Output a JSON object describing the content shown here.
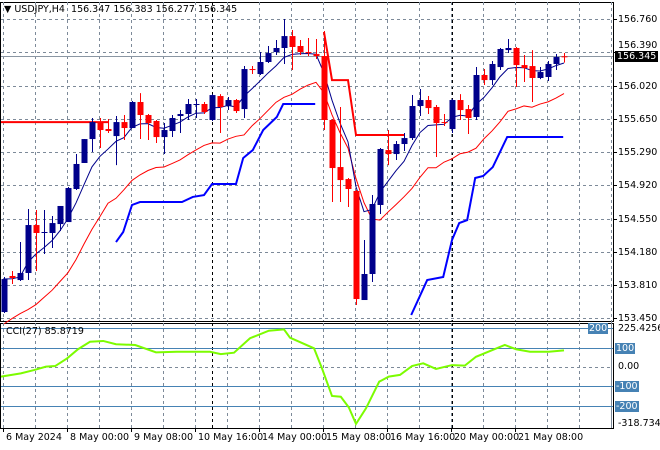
{
  "header": {
    "symbol": "USDJPY,H4",
    "ohlc": "156.347 156.383 156.277 156.345"
  },
  "price_axis": {
    "labels": [
      "156.760",
      "156.390",
      "156.020",
      "155.650",
      "155.290",
      "154.920",
      "154.550",
      "154.180",
      "153.810",
      "153.450"
    ],
    "levels": [
      156.76,
      156.39,
      156.02,
      155.65,
      155.29,
      154.92,
      154.55,
      154.18,
      153.81,
      153.45
    ],
    "current": "156.345",
    "current_value": 156.345
  },
  "cci": {
    "title": "CCI(27) 85.8719",
    "max_label": "225.4256",
    "min_label": "-318.7341",
    "zero_label": "0.00",
    "levels": [
      {
        "v": 200,
        "label": "200"
      },
      {
        "v": 100,
        "label": "100"
      },
      {
        "v": -100,
        "label": "-100"
      },
      {
        "v": -200,
        "label": "-200"
      }
    ],
    "points": [
      [
        -0.5,
        -50
      ],
      [
        2.1,
        -33
      ],
      [
        3.75,
        -16
      ],
      [
        5.25,
        2
      ],
      [
        6.4,
        5
      ],
      [
        7.9,
        45
      ],
      [
        9.25,
        92
      ],
      [
        10.75,
        131
      ],
      [
        12.4,
        135
      ],
      [
        14,
        118
      ],
      [
        16.4,
        114
      ],
      [
        19,
        76
      ],
      [
        21.6,
        79
      ],
      [
        25.75,
        79
      ],
      [
        27.1,
        67
      ],
      [
        28.75,
        74
      ],
      [
        30.75,
        149
      ],
      [
        33.1,
        188
      ],
      [
        35,
        195
      ],
      [
        35.75,
        152
      ],
      [
        38.75,
        97
      ],
      [
        39.75,
        -7
      ],
      [
        41,
        -150
      ],
      [
        42.1,
        -154
      ],
      [
        43.1,
        -209
      ],
      [
        44,
        -295
      ],
      [
        45.25,
        -214
      ],
      [
        46.9,
        -76
      ],
      [
        48.1,
        -50
      ],
      [
        49.5,
        -41
      ],
      [
        51,
        5
      ],
      [
        52.4,
        19
      ],
      [
        54,
        -10
      ],
      [
        56,
        10
      ],
      [
        57.6,
        7
      ],
      [
        59,
        53
      ],
      [
        62.6,
        114
      ],
      [
        64,
        92
      ],
      [
        65.75,
        79
      ],
      [
        68.1,
        79
      ],
      [
        70,
        86
      ]
    ]
  },
  "dates": [
    "6 May 2024",
    "8 May 00:00",
    "9 May 08:00",
    "10 May 16:00",
    "14 May 00:00",
    "15 May 08:00",
    "16 May 16:00",
    "20 May 00:00",
    "21 May 08:00"
  ],
  "colors": {
    "bull": "#00008b",
    "bear": "#ff0000",
    "cci": "#7cfc00",
    "level": "#4682b4",
    "stop_red": "#ff0000",
    "stop_blue": "#0000ff"
  },
  "chart_data": {
    "type": "candlestick",
    "ylim": [
      153.45,
      156.76
    ],
    "candles": [
      [
        153.516,
        153.904,
        153.505,
        153.881
      ],
      [
        153.915,
        153.97,
        153.826,
        153.893
      ],
      [
        153.87,
        154.291,
        153.859,
        153.948
      ],
      [
        153.948,
        154.656,
        153.87,
        154.479
      ],
      [
        154.479,
        154.645,
        153.97,
        154.391
      ],
      [
        154.402,
        154.645,
        154.158,
        154.402
      ],
      [
        154.391,
        154.579,
        154.225,
        154.501
      ],
      [
        154.49,
        154.69,
        154.413,
        154.69
      ],
      [
        154.512,
        154.9,
        154.512,
        154.889
      ],
      [
        154.878,
        155.265,
        154.867,
        155.155
      ],
      [
        155.166,
        155.431,
        155.166,
        155.431
      ],
      [
        155.431,
        155.664,
        155.287,
        155.619
      ],
      [
        155.619,
        155.664,
        155.332,
        155.531
      ],
      [
        155.542,
        155.653,
        155.498,
        155.52
      ],
      [
        155.464,
        155.686,
        155.143,
        155.619
      ],
      [
        155.619,
        155.697,
        155.42,
        155.553
      ],
      [
        155.553,
        155.852,
        155.553,
        155.841
      ],
      [
        155.841,
        155.94,
        155.431,
        155.697
      ],
      [
        155.697,
        155.708,
        155.42,
        155.608
      ],
      [
        155.631,
        155.642,
        155.387,
        155.453
      ],
      [
        155.453,
        155.608,
        155.265,
        155.531
      ],
      [
        155.52,
        155.697,
        155.453,
        155.664
      ],
      [
        155.686,
        155.752,
        155.498,
        155.708
      ],
      [
        155.708,
        155.874,
        155.642,
        155.819
      ],
      [
        155.819,
        155.874,
        155.664,
        155.819
      ],
      [
        155.819,
        155.841,
        155.708,
        155.73
      ],
      [
        155.642,
        155.929,
        155.631,
        155.918
      ],
      [
        155.907,
        155.929,
        155.498,
        155.786
      ],
      [
        155.797,
        155.896,
        155.752,
        155.863
      ],
      [
        155.863,
        155.874,
        155.719,
        155.741
      ],
      [
        155.763,
        156.239,
        155.664,
        156.206
      ],
      [
        156.206,
        156.239,
        156.151,
        156.195
      ],
      [
        156.151,
        156.394,
        156.14,
        156.284
      ],
      [
        156.284,
        156.461,
        156.273,
        156.383
      ],
      [
        156.394,
        156.527,
        156.361,
        156.439
      ],
      [
        156.439,
        156.76,
        156.262,
        156.571
      ],
      [
        156.571,
        156.638,
        156.195,
        156.45
      ],
      [
        156.461,
        156.527,
        156.361,
        156.394
      ],
      [
        156.394,
        156.549,
        156.35,
        156.383
      ],
      [
        156.372,
        156.538,
        156.317,
        156.35
      ],
      [
        156.35,
        156.627,
        155.531,
        155.642
      ],
      [
        155.642,
        155.653,
        154.734,
        155.11
      ],
      [
        155.121,
        155.786,
        154.734,
        154.977
      ],
      [
        154.988,
        155.0,
        154.679,
        154.878
      ],
      [
        154.856,
        154.867,
        153.594,
        153.66
      ],
      [
        153.649,
        154.313,
        153.649,
        153.937
      ],
      [
        153.937,
        154.811,
        153.848,
        154.712
      ],
      [
        154.701,
        155.332,
        154.601,
        155.321
      ],
      [
        155.309,
        155.531,
        155.143,
        155.265
      ],
      [
        155.265,
        155.409,
        155.199,
        155.376
      ],
      [
        155.376,
        155.498,
        155.298,
        155.442
      ],
      [
        155.442,
        155.918,
        155.42,
        155.797
      ],
      [
        155.797,
        155.985,
        155.686,
        155.863
      ],
      [
        155.863,
        155.907,
        155.708,
        155.774
      ],
      [
        155.786,
        155.808,
        155.232,
        155.608
      ],
      [
        155.619,
        155.708,
        155.575,
        155.608
      ],
      [
        155.542,
        155.874,
        155.498,
        155.863
      ],
      [
        155.863,
        155.929,
        155.642,
        155.752
      ],
      [
        155.763,
        155.808,
        155.487,
        155.664
      ],
      [
        155.675,
        156.228,
        155.642,
        156.14
      ],
      [
        156.14,
        156.206,
        156.029,
        156.084
      ],
      [
        156.084,
        156.295,
        156.029,
        156.262
      ],
      [
        156.228,
        156.439,
        156.195,
        156.428
      ],
      [
        156.416,
        156.538,
        156.383,
        156.439
      ],
      [
        156.439,
        156.45,
        156.007,
        156.25
      ],
      [
        156.25,
        156.361,
        156.062,
        156.217
      ],
      [
        156.239,
        156.416,
        155.841,
        156.107
      ],
      [
        156.107,
        156.228,
        156.095,
        156.173
      ],
      [
        156.118,
        156.295,
        156.073,
        156.262
      ],
      [
        156.262,
        156.372,
        156.195,
        156.339
      ],
      [
        156.347,
        156.383,
        156.277,
        156.345
      ]
    ],
    "red_stop": [
      [
        [
          -0.5,
          155.619
        ],
        [
          13,
          155.619
        ]
      ],
      [
        [
          40,
          156.616
        ],
        [
          41,
          156.084
        ],
        [
          43,
          156.084
        ],
        [
          44,
          155.476
        ],
        [
          50,
          155.476
        ]
      ]
    ],
    "blue_stop": [
      [
        [
          14,
          154.291
        ],
        [
          14.9,
          154.402
        ],
        [
          16,
          154.701
        ],
        [
          17,
          154.734
        ],
        [
          22.25,
          154.734
        ],
        [
          23.6,
          154.79
        ],
        [
          25,
          154.811
        ],
        [
          26,
          154.933
        ],
        [
          29,
          154.933
        ],
        [
          29.9,
          155.221
        ],
        [
          31.1,
          155.309
        ],
        [
          32.4,
          155.531
        ],
        [
          34.1,
          155.675
        ],
        [
          34.9,
          155.819
        ],
        [
          38.9,
          155.819
        ]
      ],
      [
        [
          50.9,
          153.483
        ],
        [
          52.9,
          153.87
        ],
        [
          54.9,
          153.904
        ],
        [
          56,
          154.313
        ],
        [
          56.9,
          154.501
        ],
        [
          57.9,
          154.534
        ],
        [
          58.9,
          155.0
        ],
        [
          59.9,
          155.022
        ],
        [
          61.1,
          155.121
        ],
        [
          62.9,
          155.454
        ],
        [
          69.9,
          155.454
        ]
      ]
    ]
  }
}
